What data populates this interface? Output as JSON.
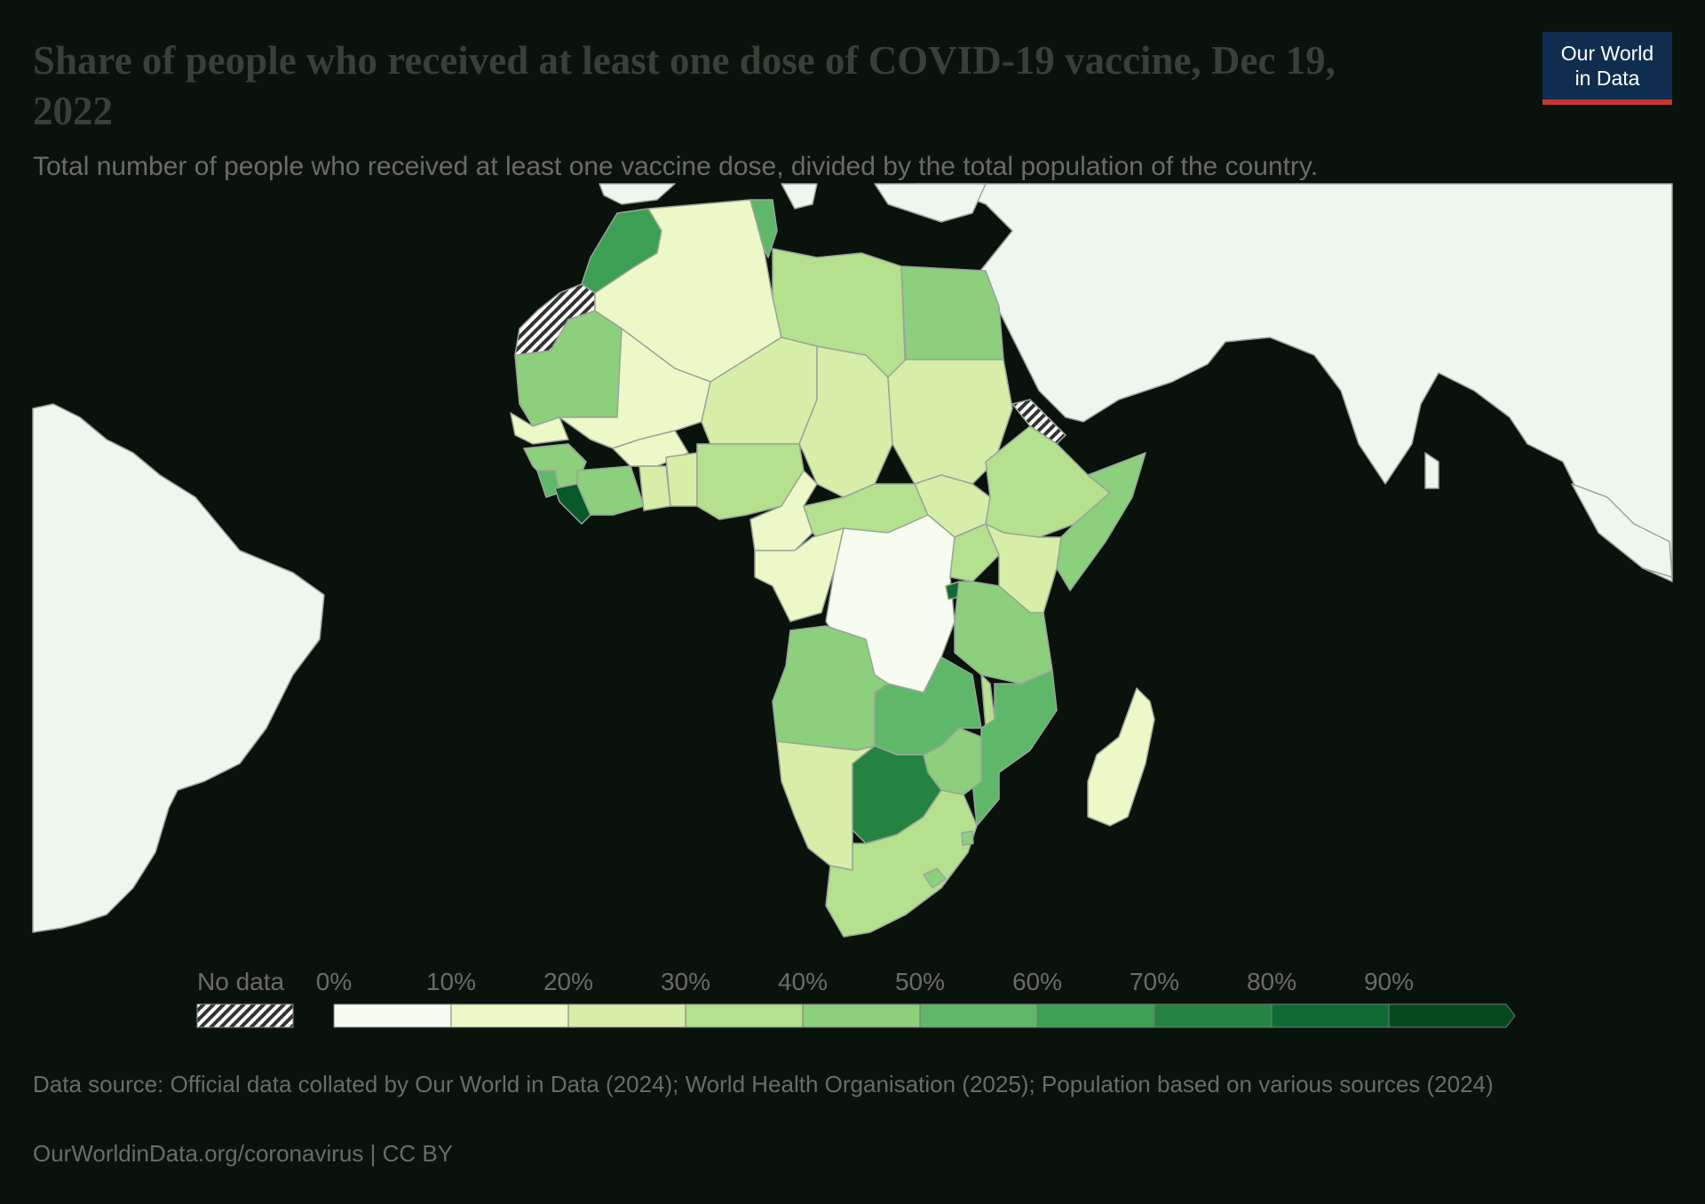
{
  "header": {
    "title": "Share of people who received at least one dose of COVID-19 vaccine, Dec 19, 2022",
    "subtitle": "Total number of people who received at least one vaccine dose, divided by the total population of the country."
  },
  "logo": {
    "line1": "Our World",
    "line2": "in Data"
  },
  "legend": {
    "no_data_label": "No data",
    "bins": [
      {
        "label": "0%",
        "color": "#f7fcf0"
      },
      {
        "label": "10%",
        "color": "#edf8c8"
      },
      {
        "label": "20%",
        "color": "#d7eea8"
      },
      {
        "label": "30%",
        "color": "#b5e08e"
      },
      {
        "label": "40%",
        "color": "#8ccf7c"
      },
      {
        "label": "50%",
        "color": "#5fb86a"
      },
      {
        "label": "60%",
        "color": "#3c9f53"
      },
      {
        "label": "70%",
        "color": "#24833f"
      },
      {
        "label": "80%",
        "color": "#0f6b33"
      },
      {
        "label": "90%",
        "color": "#08592a"
      }
    ],
    "last_color": "#06491f"
  },
  "footer": {
    "source": "Data source: Official data collated by Our World in Data (2024); World Health Organisation (2025); Population based on various sources (2024)",
    "url": "OurWorldinData.org/coronavirus",
    "license": "CC BY"
  },
  "colors": {
    "background": "#0a120c",
    "land_nodata_region": "#eef7ee",
    "border": "#9aa59a"
  }
}
